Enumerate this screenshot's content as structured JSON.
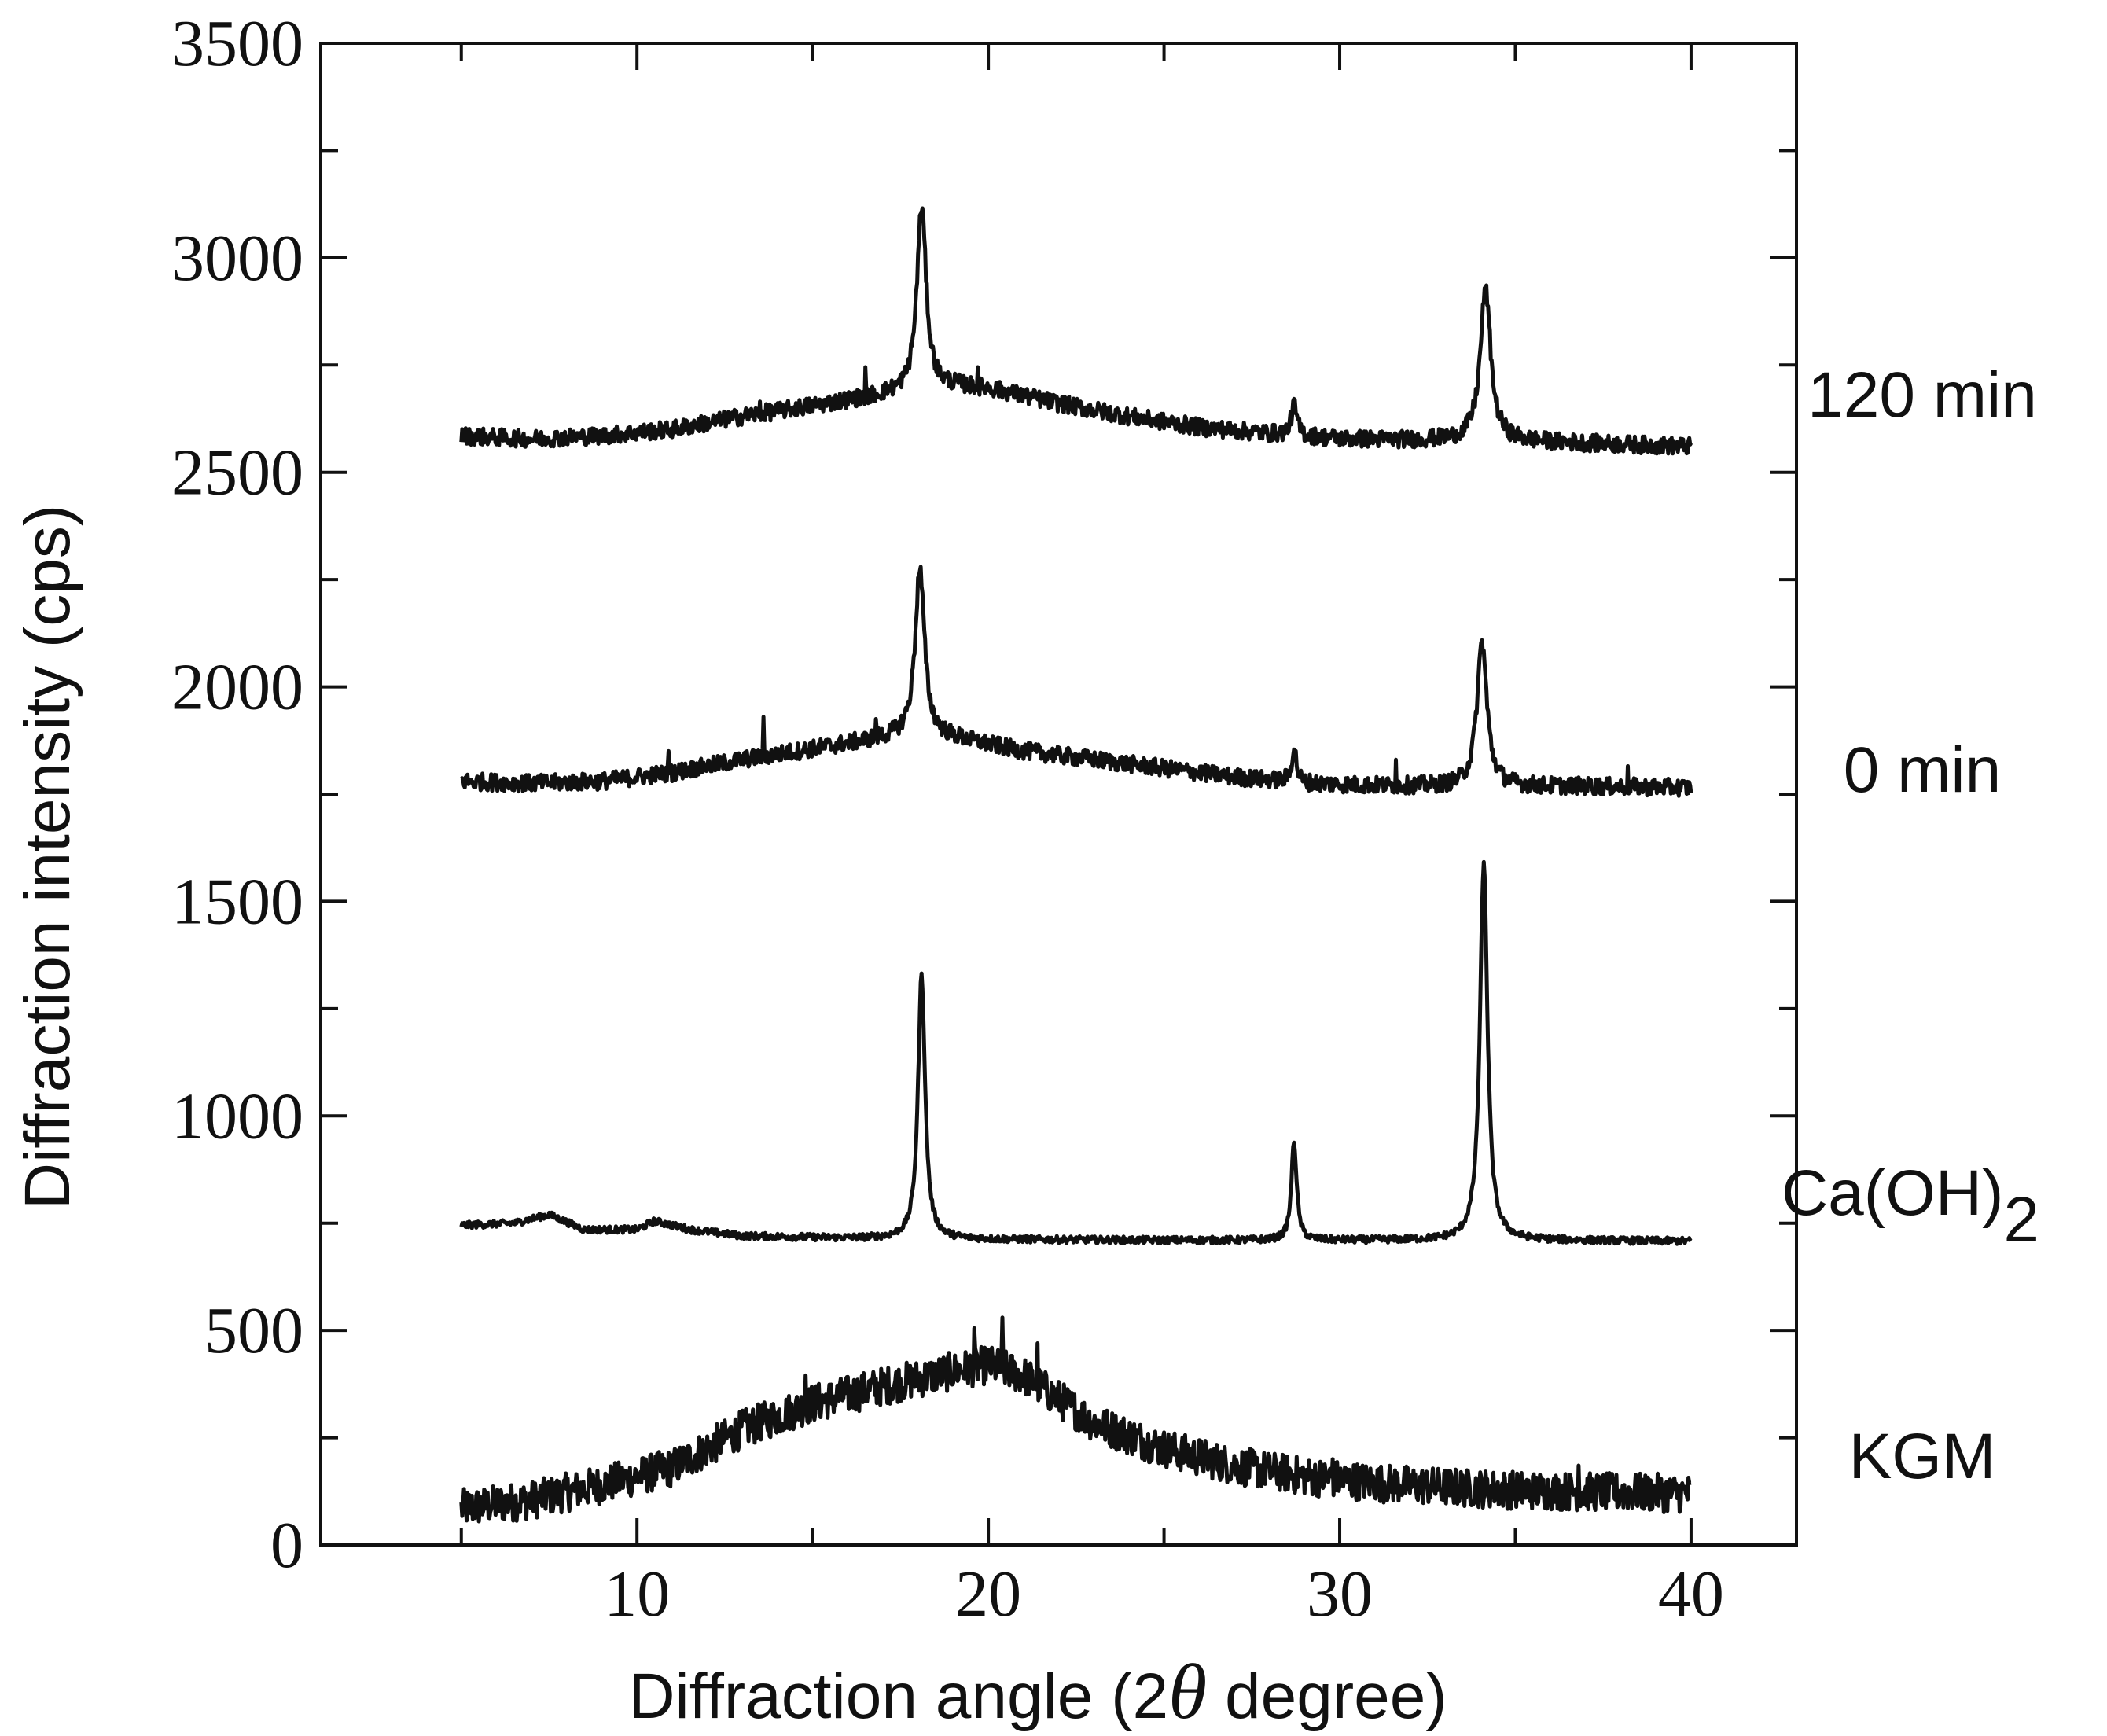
{
  "chart_data": {
    "type": "line",
    "xlabel_prefix": "Diffraction angle (2",
    "xlabel_symbol": "θ",
    "xlabel_suffix": " degree)",
    "ylabel": "Diffraction intensity (cps)",
    "xlim": [
      1,
      43
    ],
    "ylim": [
      0,
      3500
    ],
    "xticks": [
      10,
      20,
      30,
      40
    ],
    "xtick_labels": [
      "10",
      "20",
      "30",
      "40"
    ],
    "yticks": [
      0,
      500,
      1000,
      1500,
      2000,
      2500,
      3000,
      3500
    ],
    "ytick_labels": [
      "0",
      "500",
      "1000",
      "1500",
      "2000",
      "2500",
      "3000",
      "3500"
    ],
    "x_range": [
      5,
      40
    ],
    "grid": false,
    "series": [
      {
        "name": "KGM",
        "label": "KGM",
        "subscript": "",
        "color": "#111111",
        "points": [
          [
            5,
            85
          ],
          [
            7,
            105
          ],
          [
            9,
            140
          ],
          [
            11,
            180
          ],
          [
            13,
            270
          ],
          [
            15,
            330
          ],
          [
            17,
            370
          ],
          [
            19,
            405
          ],
          [
            20,
            420
          ],
          [
            21,
            395
          ],
          [
            22,
            340
          ],
          [
            23,
            285
          ],
          [
            25,
            225
          ],
          [
            27,
            185
          ],
          [
            29,
            160
          ],
          [
            31,
            145
          ],
          [
            33,
            135
          ],
          [
            35,
            128
          ],
          [
            37,
            124
          ],
          [
            40,
            120
          ]
        ],
        "noise": 45,
        "peaks": [],
        "spikes": [
          [
            20.4,
            530
          ],
          [
            19.6,
            505
          ],
          [
            14.8,
            395
          ],
          [
            21.4,
            470
          ],
          [
            29.8,
            200
          ],
          [
            36.8,
            185
          ]
        ]
      },
      {
        "name": "Ca(OH)2",
        "label": "Ca(OH)",
        "subscript": "2",
        "color": "#111111",
        "points": [
          [
            5,
            745
          ],
          [
            6.5,
            750
          ],
          [
            7.5,
            770
          ],
          [
            8.5,
            735
          ],
          [
            10,
            735
          ],
          [
            10.5,
            755
          ],
          [
            11.5,
            735
          ],
          [
            13,
            720
          ],
          [
            16,
            715
          ],
          [
            20,
            712
          ],
          [
            25,
            710
          ],
          [
            30,
            710
          ],
          [
            35,
            710
          ],
          [
            40,
            708
          ]
        ],
        "noise": 8,
        "peaks": [
          [
            18.1,
            1330,
            0.12
          ],
          [
            28.7,
            940,
            0.09
          ],
          [
            34.1,
            1585,
            0.13
          ]
        ],
        "spikes": []
      },
      {
        "name": "0 min",
        "label": "0 min",
        "subscript": "",
        "color": "#111111",
        "points": [
          [
            5,
            1780
          ],
          [
            7,
            1775
          ],
          [
            9,
            1780
          ],
          [
            11,
            1800
          ],
          [
            13,
            1830
          ],
          [
            15,
            1855
          ],
          [
            17,
            1880
          ],
          [
            18,
            1890
          ],
          [
            19,
            1880
          ],
          [
            21,
            1850
          ],
          [
            23,
            1830
          ],
          [
            25,
            1810
          ],
          [
            27,
            1790
          ],
          [
            29,
            1775
          ],
          [
            31,
            1770
          ],
          [
            33,
            1768
          ],
          [
            35,
            1768
          ],
          [
            37,
            1768
          ],
          [
            40,
            1765
          ]
        ],
        "noise": 20,
        "peaks": [
          [
            18.05,
            2275,
            0.16
          ],
          [
            28.7,
            1860,
            0.08
          ],
          [
            34.05,
            2105,
            0.17
          ]
        ],
        "spikes": [
          [
            13.6,
            1930
          ],
          [
            16.8,
            1925
          ],
          [
            10.9,
            1850
          ],
          [
            31.6,
            1830
          ],
          [
            38.2,
            1815
          ]
        ]
      },
      {
        "name": "120 min",
        "label": "120 min",
        "subscript": "",
        "color": "#111111",
        "points": [
          [
            5,
            2585
          ],
          [
            7,
            2578
          ],
          [
            9,
            2585
          ],
          [
            11,
            2600
          ],
          [
            13,
            2630
          ],
          [
            15,
            2655
          ],
          [
            17,
            2680
          ],
          [
            18,
            2690
          ],
          [
            19,
            2700
          ],
          [
            20,
            2695
          ],
          [
            22,
            2660
          ],
          [
            24,
            2630
          ],
          [
            26,
            2605
          ],
          [
            28,
            2590
          ],
          [
            30,
            2578
          ],
          [
            32,
            2575
          ],
          [
            34,
            2575
          ],
          [
            36,
            2570
          ],
          [
            38,
            2565
          ],
          [
            40,
            2560
          ]
        ],
        "noise": 20,
        "peaks": [
          [
            18.1,
            3120,
            0.16
          ],
          [
            28.7,
            2655,
            0.1
          ],
          [
            34.15,
            2925,
            0.18
          ]
        ],
        "spikes": [
          [
            16.5,
            2745
          ],
          [
            19.7,
            2745
          ],
          [
            13.5,
            2665
          ]
        ]
      }
    ]
  }
}
